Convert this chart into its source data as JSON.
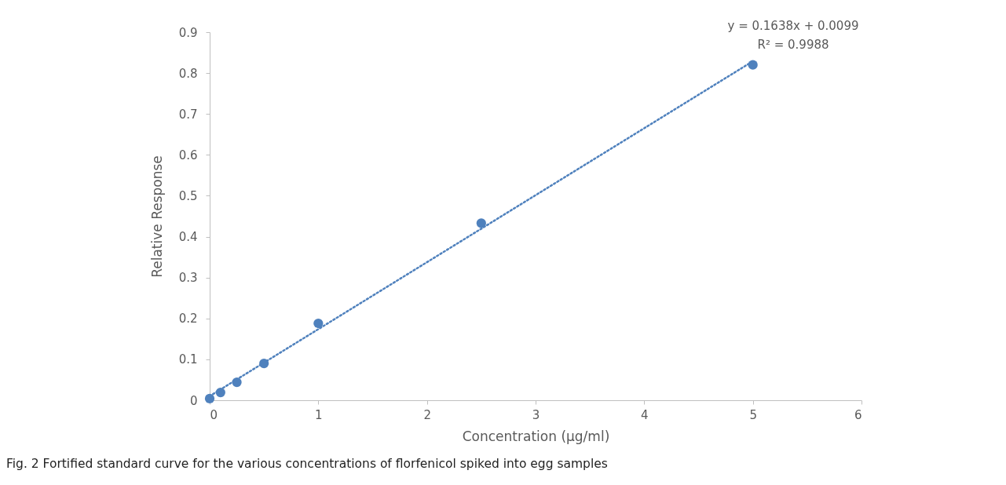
{
  "chart_data": {
    "type": "scatter",
    "xlabel": "Concentration (µg/ml)",
    "ylabel": "Relative Response",
    "xlim": [
      0,
      6
    ],
    "xticks": [
      0,
      1,
      2,
      3,
      4,
      5,
      6
    ],
    "ylim": [
      0,
      0.9
    ],
    "yticks": [
      0,
      0.1,
      0.2,
      0.3,
      0.4,
      0.5,
      0.6,
      0.7,
      0.8,
      0.9
    ],
    "grid": false,
    "marker": "circle",
    "series": [
      {
        "color": "#4f81bd",
        "x": [
          0,
          0.1,
          0.25,
          0.5,
          1,
          2.5,
          5
        ],
        "values": [
          0.004,
          0.019,
          0.044,
          0.09,
          0.188,
          0.433,
          0.82
        ]
      },
      {
        "type": "line",
        "color": "#4f81bd",
        "line_style": "dotted",
        "marker": "none",
        "x": [
          0,
          5
        ],
        "values": [
          0.01,
          0.829
        ]
      }
    ],
    "annotations": [
      "y = 0.1638x + 0.0099",
      "R² = 0.9988",
      "Fig. 2 Fortified standard curve for the various concentrations of florfenicol spiked into egg samples"
    ]
  }
}
